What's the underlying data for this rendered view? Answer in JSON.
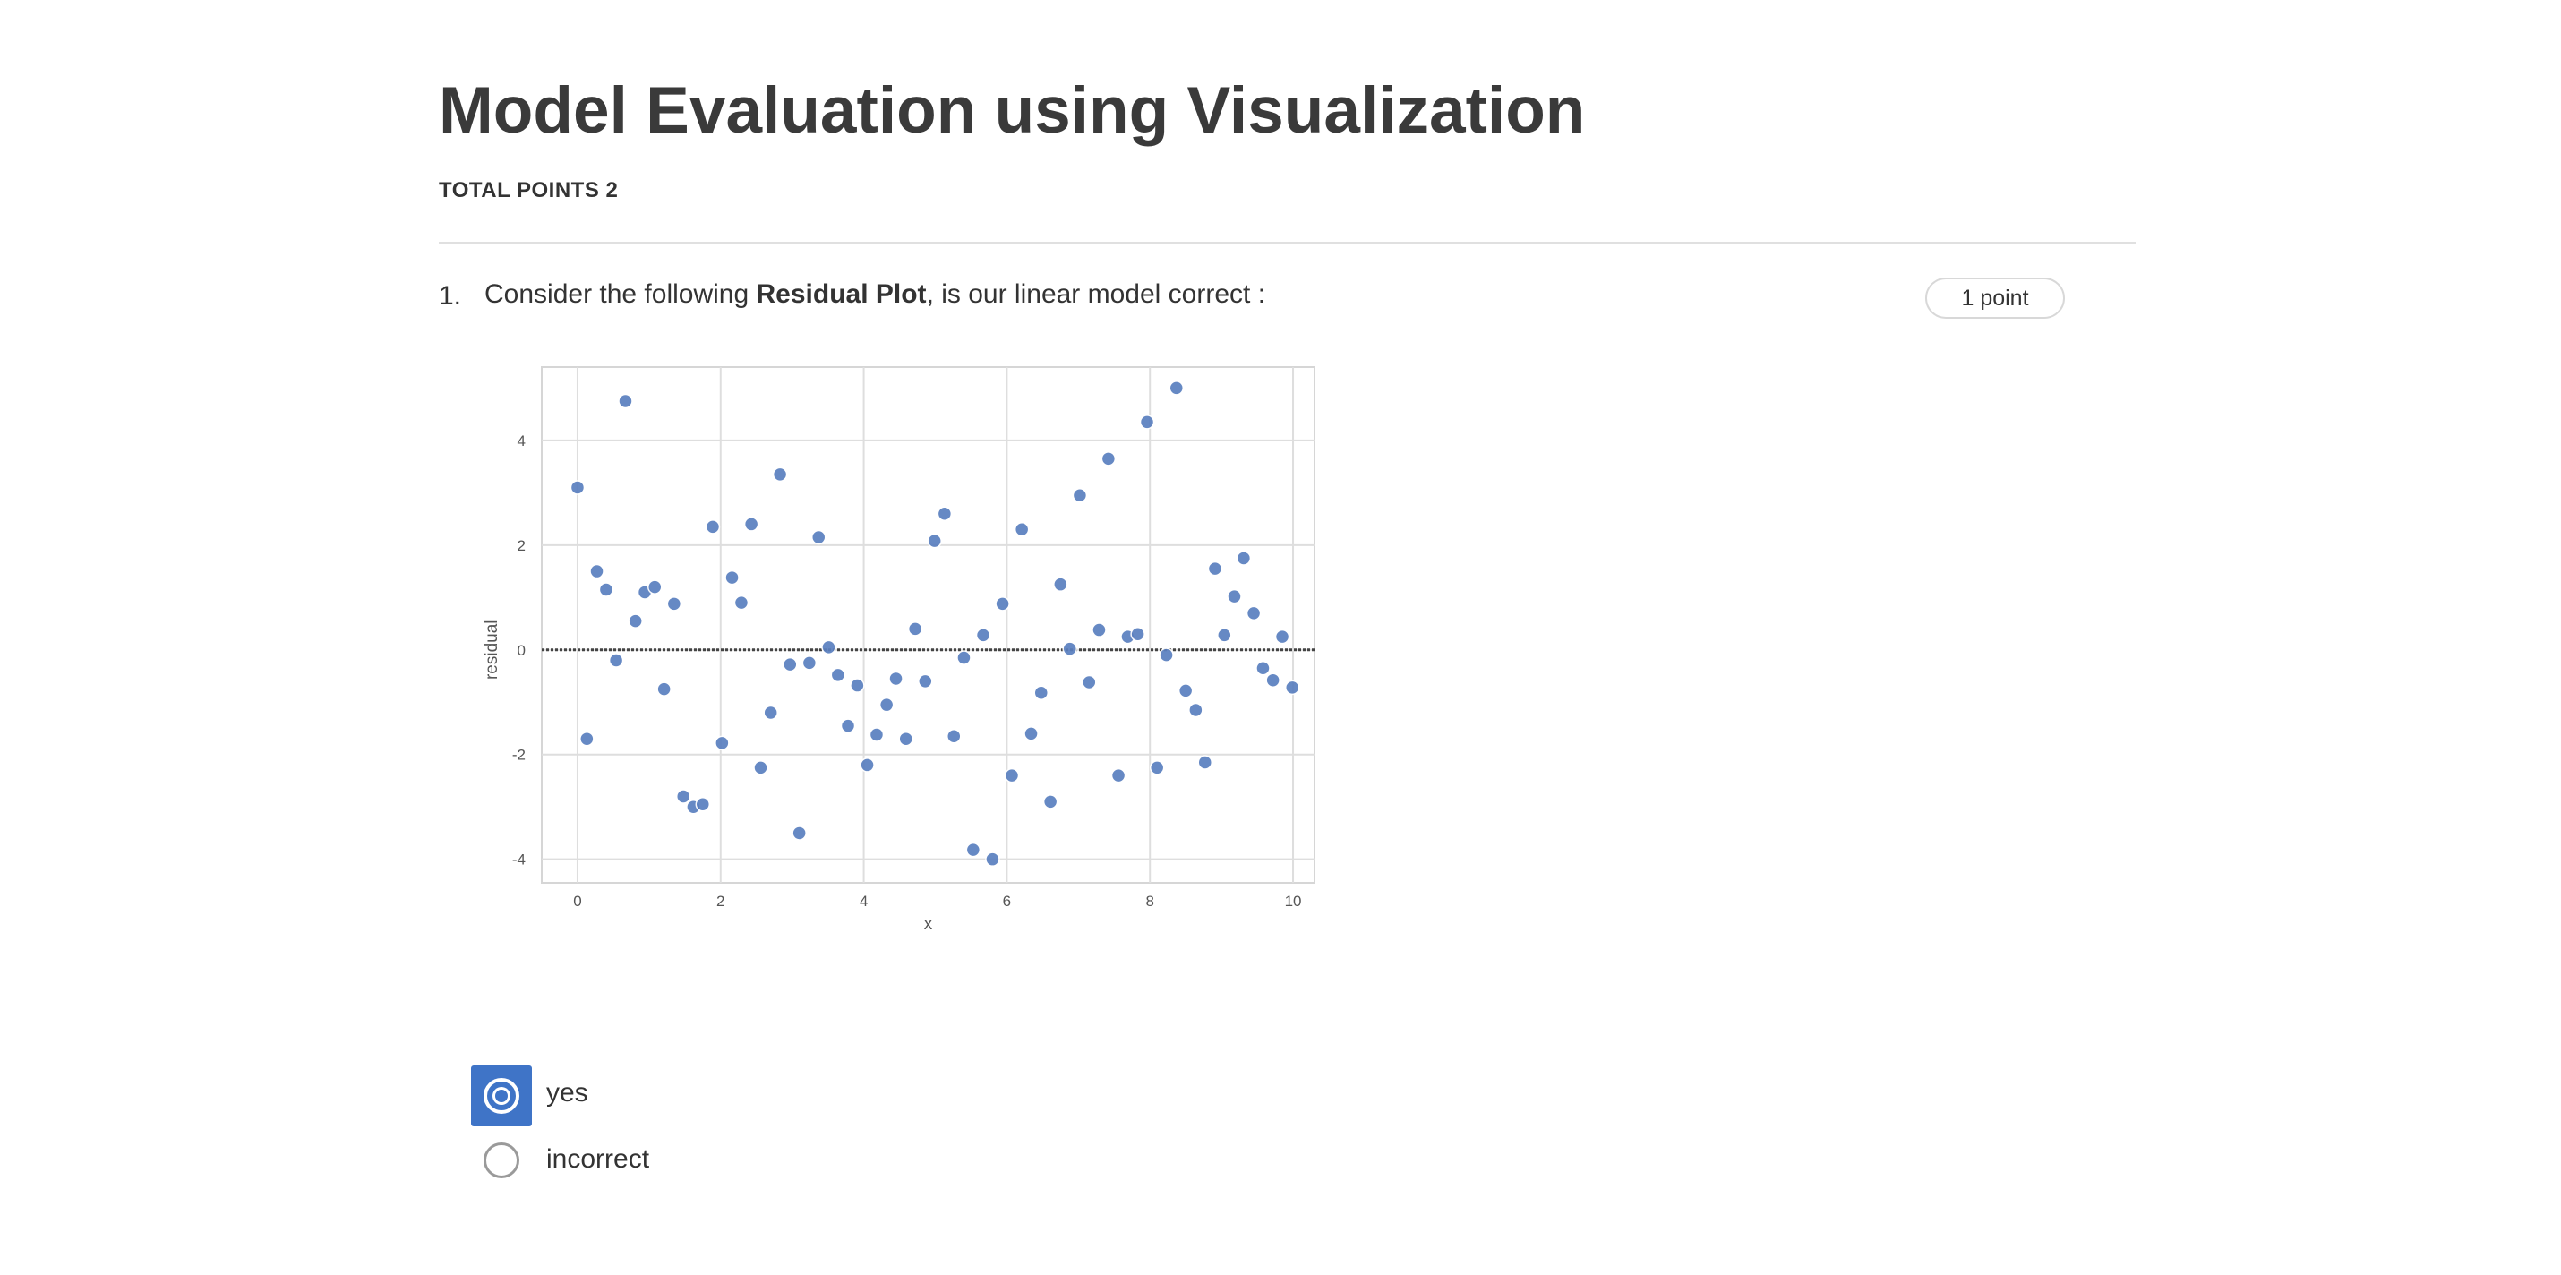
{
  "header": {
    "title": "Model Evaluation using Visualization",
    "total_points": "TOTAL POINTS 2"
  },
  "question": {
    "number": "1.",
    "text_before": "Consider the following ",
    "text_bold": "Residual Plot",
    "text_after": ", is our linear model correct :",
    "points": "1 point"
  },
  "options": [
    {
      "label": "yes",
      "selected": true
    },
    {
      "label": "incorrect",
      "selected": false
    }
  ],
  "chart_data": {
    "type": "scatter",
    "title": "",
    "xlabel": "x",
    "ylabel": "residual",
    "xlim": [
      -0.5,
      10.3
    ],
    "ylim": [
      -4.45,
      5.4
    ],
    "xticks": [
      0,
      2,
      4,
      6,
      8,
      10
    ],
    "yticks": [
      -4,
      -2,
      0,
      2,
      4
    ],
    "grid": true,
    "reference_line_y": 0,
    "point_color": "#5a7fbf",
    "points": [
      [
        0.0,
        3.1
      ],
      [
        0.13,
        -1.7
      ],
      [
        0.27,
        1.5
      ],
      [
        0.4,
        1.15
      ],
      [
        0.54,
        -0.2
      ],
      [
        0.67,
        4.75
      ],
      [
        0.81,
        0.55
      ],
      [
        0.94,
        1.1
      ],
      [
        1.08,
        1.2
      ],
      [
        1.21,
        -0.75
      ],
      [
        1.35,
        0.88
      ],
      [
        1.48,
        -2.8
      ],
      [
        1.62,
        -3.0
      ],
      [
        1.75,
        -2.95
      ],
      [
        1.89,
        2.35
      ],
      [
        2.02,
        -1.78
      ],
      [
        2.16,
        1.38
      ],
      [
        2.29,
        0.9
      ],
      [
        2.43,
        2.4
      ],
      [
        2.56,
        -2.25
      ],
      [
        2.7,
        -1.2
      ],
      [
        2.83,
        3.35
      ],
      [
        2.97,
        -0.28
      ],
      [
        3.1,
        -3.5
      ],
      [
        3.24,
        -0.25
      ],
      [
        3.37,
        2.15
      ],
      [
        3.51,
        0.05
      ],
      [
        3.64,
        -0.48
      ],
      [
        3.78,
        -1.45
      ],
      [
        3.91,
        -0.68
      ],
      [
        4.05,
        -2.2
      ],
      [
        4.18,
        -1.62
      ],
      [
        4.32,
        -1.05
      ],
      [
        4.45,
        -0.55
      ],
      [
        4.59,
        -1.7
      ],
      [
        4.72,
        0.4
      ],
      [
        4.86,
        -0.6
      ],
      [
        4.99,
        2.08
      ],
      [
        5.13,
        2.6
      ],
      [
        5.26,
        -1.65
      ],
      [
        5.4,
        -0.15
      ],
      [
        5.53,
        -3.82
      ],
      [
        5.67,
        0.28
      ],
      [
        5.8,
        -4.0
      ],
      [
        5.94,
        0.88
      ],
      [
        6.07,
        -2.4
      ],
      [
        6.21,
        2.3
      ],
      [
        6.34,
        -1.6
      ],
      [
        6.48,
        -0.82
      ],
      [
        6.61,
        -2.9
      ],
      [
        6.75,
        1.25
      ],
      [
        6.88,
        0.02
      ],
      [
        7.02,
        2.95
      ],
      [
        7.15,
        -0.62
      ],
      [
        7.29,
        0.38
      ],
      [
        7.42,
        3.65
      ],
      [
        7.56,
        -2.4
      ],
      [
        7.69,
        0.25
      ],
      [
        7.83,
        0.3
      ],
      [
        7.96,
        4.35
      ],
      [
        8.1,
        -2.25
      ],
      [
        8.23,
        -0.1
      ],
      [
        8.37,
        5.0
      ],
      [
        8.5,
        -0.78
      ],
      [
        8.64,
        -1.15
      ],
      [
        8.77,
        -2.15
      ],
      [
        8.91,
        1.55
      ],
      [
        9.04,
        0.28
      ],
      [
        9.18,
        1.02
      ],
      [
        9.31,
        1.75
      ],
      [
        9.45,
        0.7
      ],
      [
        9.58,
        -0.35
      ],
      [
        9.72,
        -0.58
      ],
      [
        9.85,
        0.25
      ],
      [
        9.99,
        -0.72
      ]
    ]
  }
}
